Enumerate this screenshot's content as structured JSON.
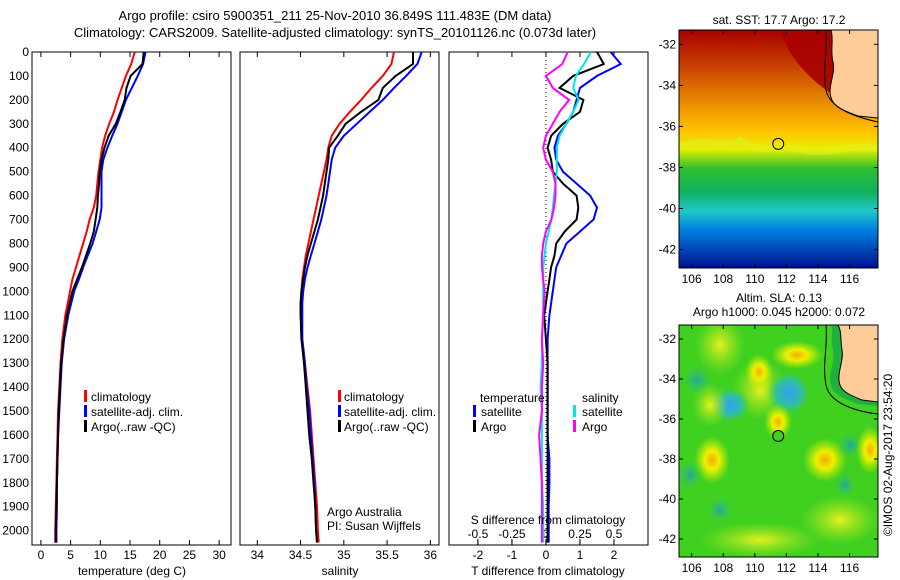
{
  "header": {
    "line1": "Argo profile: csiro 5900351_211 25-Nov-2010 36.849S 111.483E (DM data)",
    "line2": "Climatology: CARS2009. Satellite-adjusted climatology: synTS_20101126.nc (0.073d later)"
  },
  "colors": {
    "climatology": "#ff0000",
    "satellite": "#0000ff",
    "argo": "#000000",
    "sal_satellite": "#00e5e5",
    "sal_argo": "#ff00ff",
    "land": "#ffcc99"
  },
  "chart_data": [
    {
      "id": "temperature",
      "type": "line",
      "xlabel": "temperature (deg C)",
      "ylabel": "",
      "xlim": [
        -1.5,
        32
      ],
      "ylim": [
        2060,
        0
      ],
      "xticks": [
        0,
        5,
        10,
        15,
        20,
        25,
        30
      ],
      "xtick_labels": [
        "0",
        "5",
        "10",
        "15",
        "20",
        "25",
        "30"
      ],
      "yticks": [
        0,
        100,
        200,
        300,
        400,
        500,
        600,
        700,
        800,
        900,
        1000,
        1100,
        1200,
        1300,
        1400,
        1500,
        1600,
        1700,
        1800,
        1900,
        2000
      ],
      "ytick_labels": [
        "0",
        "100",
        "200",
        "300",
        "400",
        "500",
        "600",
        "700",
        "800",
        "900",
        "1000",
        "1100",
        "1200",
        "1300",
        "1400",
        "1500",
        "1600",
        "1700",
        "1800",
        "1900",
        "2000"
      ],
      "legend": [
        "climatology",
        "satellite-adj. clim.",
        "Argo(..raw -QC)"
      ],
      "depth": [
        0,
        50,
        100,
        150,
        200,
        250,
        300,
        350,
        400,
        450,
        500,
        550,
        600,
        650,
        700,
        750,
        800,
        850,
        900,
        950,
        1000,
        1100,
        1200,
        1300,
        1400,
        1500,
        1600,
        1700,
        1800,
        1900,
        2000,
        2050
      ],
      "series": [
        {
          "name": "climatology",
          "color_key": "climatology",
          "values": [
            15.8,
            15.2,
            14.3,
            13.6,
            12.9,
            12.3,
            11.5,
            10.8,
            10.3,
            10.0,
            9.7,
            9.5,
            9.3,
            8.9,
            8.2,
            7.7,
            7.1,
            6.5,
            5.9,
            5.3,
            4.9,
            4.1,
            3.6,
            3.3,
            3.1,
            2.9,
            2.8,
            2.7,
            2.6,
            2.5,
            2.4,
            2.4
          ]
        },
        {
          "name": "satellite-adj. clim.",
          "color_key": "satellite",
          "values": [
            17.6,
            17.2,
            16.3,
            15.3,
            14.3,
            13.6,
            12.9,
            12.0,
            11.2,
            10.5,
            10.2,
            10.2,
            10.2,
            10.2,
            9.9,
            9.3,
            8.7,
            7.9,
            7.1,
            6.4,
            5.6,
            4.6,
            3.9,
            3.5,
            3.3,
            3.1,
            2.9,
            2.8,
            2.7,
            2.7,
            2.6,
            2.6
          ]
        },
        {
          "name": "Argo(..raw -QC)",
          "color_key": "argo",
          "values": [
            17.3,
            17.1,
            15.1,
            14.4,
            14.1,
            13.4,
            12.6,
            11.4,
            10.7,
            10.2,
            9.9,
            9.8,
            9.6,
            9.5,
            9.2,
            8.9,
            8.3,
            7.6,
            6.9,
            6.1,
            5.3,
            4.4,
            3.8,
            3.4,
            3.2,
            3.0,
            2.9,
            2.8,
            2.7,
            2.6,
            2.5,
            2.5
          ]
        }
      ]
    },
    {
      "id": "salinity",
      "type": "line",
      "xlabel": "salinity",
      "xlim": [
        33.8,
        36.1
      ],
      "ylim": [
        2060,
        0
      ],
      "xticks": [
        34,
        34.5,
        35,
        35.5,
        36
      ],
      "xtick_labels": [
        "34",
        "34.5",
        "35",
        "35.5",
        "36"
      ],
      "legend": [
        "climatology",
        "satellite-adj. clim.",
        "Argo(..raw -QC)"
      ],
      "credit": [
        "Argo Australia",
        "PI: Susan Wijffels"
      ],
      "depth": [
        0,
        50,
        100,
        150,
        200,
        250,
        300,
        350,
        400,
        450,
        500,
        550,
        600,
        650,
        700,
        750,
        800,
        850,
        900,
        950,
        1000,
        1050,
        1100,
        1200,
        1300,
        1400,
        1500,
        1600,
        1700,
        1800,
        1900,
        2000,
        2050
      ],
      "series": [
        {
          "name": "climatology",
          "color_key": "climatology",
          "values": [
            35.58,
            35.55,
            35.45,
            35.32,
            35.2,
            35.07,
            34.95,
            34.86,
            34.82,
            34.8,
            34.77,
            34.74,
            34.71,
            34.68,
            34.65,
            34.62,
            34.59,
            34.56,
            34.54,
            34.52,
            34.51,
            34.5,
            34.5,
            34.52,
            34.55,
            34.58,
            34.61,
            34.63,
            34.65,
            34.67,
            34.69,
            34.7,
            34.71
          ]
        },
        {
          "name": "satellite-adj. clim.",
          "color_key": "satellite",
          "values": [
            35.9,
            35.85,
            35.72,
            35.58,
            35.45,
            35.3,
            35.15,
            35.0,
            34.9,
            34.86,
            34.84,
            34.82,
            34.8,
            34.77,
            34.74,
            34.7,
            34.66,
            34.62,
            34.58,
            34.55,
            34.53,
            34.52,
            34.52,
            34.52,
            34.55,
            34.57,
            34.6,
            34.62,
            34.64,
            34.66,
            34.67,
            34.68,
            34.69
          ]
        },
        {
          "name": "Argo(..raw -QC)",
          "color_key": "argo",
          "values": [
            35.8,
            35.8,
            35.6,
            35.45,
            35.4,
            35.2,
            35.02,
            34.93,
            34.83,
            34.82,
            34.8,
            34.78,
            34.76,
            34.73,
            34.7,
            34.66,
            34.62,
            34.58,
            34.55,
            34.53,
            34.51,
            34.5,
            34.5,
            34.51,
            34.54,
            34.56,
            34.58,
            34.6,
            34.63,
            34.65,
            34.67,
            34.68,
            34.69
          ]
        }
      ]
    },
    {
      "id": "differences",
      "type": "line",
      "xlabel": "T difference from climatology",
      "xlabel2": "S difference from climatology",
      "xlim": [
        -2.85,
        3.0
      ],
      "ylim": [
        2060,
        0
      ],
      "xticks": [
        -2,
        -1,
        0,
        1,
        2
      ],
      "xtick_labels": [
        "-2",
        "-1",
        "0",
        "1",
        "2"
      ],
      "s_xticks": [
        -0.5,
        -0.25,
        0,
        0.25,
        0.5
      ],
      "s_xtick_labels": [
        "-0.5",
        "-0.25",
        "0",
        "0.25",
        "0.5"
      ],
      "legend_groups": [
        {
          "title": "temperature",
          "items": [
            {
              "label": "satellite",
              "color_key": "satellite"
            },
            {
              "label": "Argo",
              "color_key": "argo"
            }
          ]
        },
        {
          "title": "salinity",
          "items": [
            {
              "label": "satellite",
              "color_key": "sal_satellite"
            },
            {
              "label": "Argo",
              "color_key": "sal_argo"
            }
          ]
        }
      ],
      "depth": [
        0,
        50,
        100,
        150,
        200,
        250,
        300,
        350,
        400,
        450,
        500,
        550,
        600,
        650,
        700,
        750,
        800,
        850,
        900,
        950,
        1000,
        1100,
        1200,
        1300,
        1400,
        1500,
        1600,
        1700,
        1800,
        1900,
        2000,
        2050
      ],
      "series": [
        {
          "name": "T satellite",
          "color_key": "satellite",
          "scale": "T",
          "values": [
            1.9,
            2.2,
            1.5,
            1.0,
            0.9,
            0.8,
            0.6,
            0.35,
            0.25,
            0.3,
            0.5,
            0.9,
            1.3,
            1.5,
            1.4,
            1.0,
            0.6,
            0.45,
            0.3,
            0.25,
            0.2,
            0.1,
            0.05,
            0.05,
            0.05,
            0.05,
            0.05,
            0.1,
            0.1,
            0.08,
            0.08,
            0.08
          ]
        },
        {
          "name": "T Argo",
          "color_key": "argo",
          "scale": "T",
          "values": [
            1.5,
            1.7,
            0.8,
            0.4,
            1.1,
            1.0,
            0.5,
            0.15,
            0.05,
            0.15,
            0.2,
            0.5,
            0.9,
            0.95,
            0.9,
            0.55,
            0.3,
            0.25,
            0.15,
            0.1,
            0.05,
            -0.05,
            0.0,
            0.05,
            0.05,
            0.05,
            0.05,
            0.05,
            0.05,
            0.05,
            0.05,
            0.05
          ]
        },
        {
          "name": "S satellite",
          "color_key": "sal_satellite",
          "scale": "S",
          "values": [
            0.33,
            0.28,
            0.22,
            0.2,
            0.24,
            0.2,
            0.15,
            0.1,
            0.08,
            0.08,
            0.08,
            0.07,
            0.06,
            0.05,
            0.04,
            0.02,
            0.0,
            -0.01,
            -0.02,
            -0.02,
            -0.02,
            -0.02,
            -0.03,
            -0.03,
            -0.04,
            -0.03,
            -0.03,
            -0.03,
            -0.03,
            -0.02,
            -0.02,
            -0.02
          ]
        },
        {
          "name": "S Argo",
          "color_key": "sal_argo",
          "scale": "S",
          "values": [
            0.16,
            0.12,
            0.0,
            0.05,
            0.17,
            0.1,
            0.05,
            0.0,
            -0.02,
            0.0,
            0.05,
            0.07,
            0.07,
            0.06,
            0.04,
            0.0,
            -0.02,
            -0.03,
            -0.03,
            -0.02,
            -0.01,
            -0.02,
            -0.03,
            -0.02,
            -0.03,
            -0.03,
            -0.05,
            -0.04,
            -0.03,
            -0.03,
            -0.03,
            -0.03
          ]
        }
      ]
    },
    {
      "id": "sst-map",
      "type": "heatmap",
      "title": "sat. SST: 17.7 Argo: 17.2",
      "xlim": [
        105.2,
        117.8
      ],
      "ylim": [
        -42.9,
        -31.3
      ],
      "xticks": [
        106,
        108,
        110,
        112,
        114,
        116
      ],
      "xtick_labels": [
        "106",
        "108",
        "110",
        "112",
        "114",
        "116"
      ],
      "yticks": [
        -32,
        -34,
        -36,
        -38,
        -40,
        -42
      ],
      "ytick_labels": [
        "-32",
        "-34",
        "-36",
        "-38",
        "-40",
        "-42"
      ],
      "marker": {
        "lon": 111.483,
        "lat": -36.849
      }
    },
    {
      "id": "sla-map",
      "type": "heatmap",
      "title_line1": "Altim. SLA: 0.13",
      "title_line2": "Argo h1000: 0.045 h2000: 0.072",
      "xlim": [
        105.2,
        117.8
      ],
      "ylim": [
        -42.9,
        -31.3
      ],
      "xticks": [
        106,
        108,
        110,
        112,
        114,
        116
      ],
      "xtick_labels": [
        "106",
        "108",
        "110",
        "112",
        "114",
        "116"
      ],
      "yticks": [
        -32,
        -34,
        -36,
        -38,
        -40,
        -42
      ],
      "ytick_labels": [
        "-32",
        "-34",
        "-36",
        "-38",
        "-40",
        "-42"
      ],
      "marker": {
        "lon": 111.483,
        "lat": -36.849
      }
    }
  ],
  "footer": {
    "copyright": "©IMOS 02-Aug-2017 23:54:20"
  }
}
